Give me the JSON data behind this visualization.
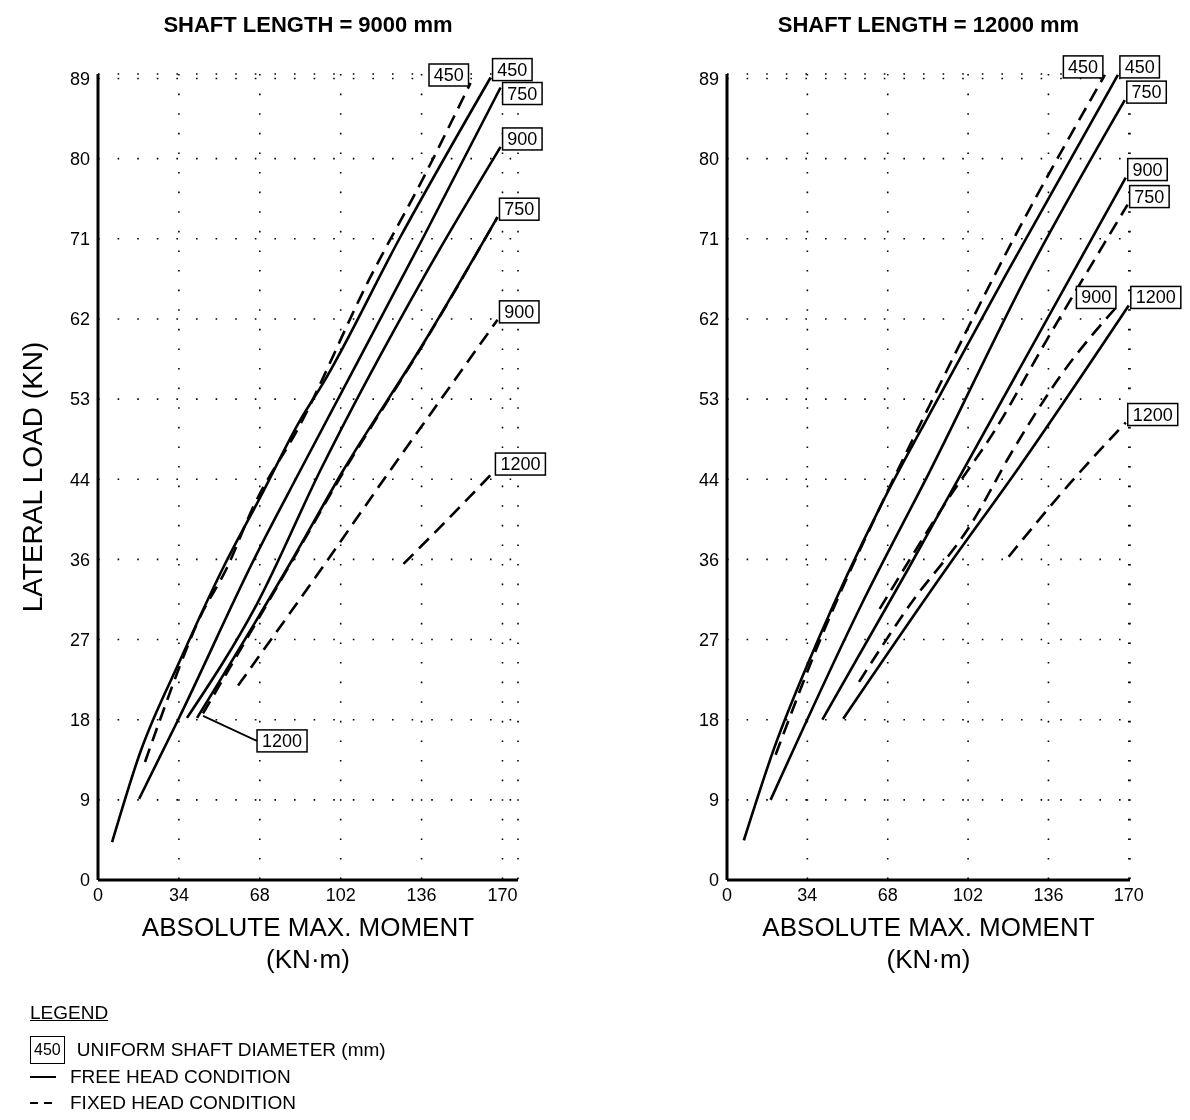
{
  "chart_data": [
    {
      "type": "line",
      "title": "SHAFT LENGTH =  9000 mm",
      "xlabel": "ABSOLUTE  MAX.  MOMENT\n(KN·m)",
      "ylabel": "LATERAL  LOAD  (KN)",
      "legend_title": "LEGEND",
      "xlim": [
        0,
        176
      ],
      "xticks": [
        0,
        {
          "value": 33.9,
          "label": "34"
        },
        {
          "value": 67.8,
          "label": "68"
        },
        {
          "value": 101.7,
          "label": "102"
        },
        {
          "value": 135.6,
          "label": "136"
        },
        {
          "value": 169.5,
          "label": "170"
        }
      ],
      "ylim": [
        0,
        89.5
      ],
      "yticks": [
        0,
        {
          "value": 8.9,
          "label": "9"
        },
        {
          "value": 17.8,
          "label": "18"
        },
        {
          "value": 26.7,
          "label": "27"
        },
        {
          "value": 35.6,
          "label": "36"
        },
        {
          "value": 44.5,
          "label": "44"
        },
        {
          "value": 53.4,
          "label": "53"
        },
        {
          "value": 62.3,
          "label": "62"
        },
        {
          "value": 71.2,
          "label": "71"
        },
        {
          "value": 80.1,
          "label": "80"
        },
        {
          "value": 89,
          "label": "89"
        }
      ],
      "grid": true,
      "series": [
        {
          "color": "#000000",
          "line_style": "solid",
          "x": [
            5.9,
            17.6,
            34.4,
            52.5,
            68.0,
            84.8,
            94.4,
            126.7,
            164.5
          ],
          "values": [
            4.2,
            14.1,
            24.4,
            34.7,
            42.5,
            51.1,
            55.2,
            71.4,
            89.1
          ]
        },
        {
          "color": "#000000",
          "line_style": "solid",
          "x": [
            17.2,
            33.6,
            66.7,
            84.8,
            136.4,
            168.7
          ],
          "values": [
            9.0,
            17.8,
            36.3,
            45.5,
            71.4,
            88.0
          ]
        },
        {
          "color": "#000000",
          "line_style": "solid",
          "x": [
            37.3,
            66.7,
            93.2,
            136.4,
            168.7
          ],
          "values": [
            18.0,
            30.7,
            45.5,
            66.9,
            81.4
          ]
        },
        {
          "color": "#000000",
          "line_style": "solid",
          "x": [
            41.5,
            80.6,
            102.8,
            136.4,
            167.4
          ],
          "values": [
            18.0,
            35.2,
            45.5,
            59.6,
            73.6
          ]
        },
        {
          "color": "#000000",
          "line_style": "dashed",
          "x": [
            19.7,
            26.0,
            42.8,
            54.1,
            65.0,
            84.8,
            112.9,
            136.4,
            156.1
          ],
          "values": [
            13.1,
            17.8,
            29.2,
            34.7,
            41.4,
            50.6,
            66.3,
            78.0,
            88.5
          ]
        },
        {
          "color": "#000000",
          "line_style": "dashed",
          "x": [
            44.0,
            81.5,
            103.5,
            137.0,
            167.4
          ],
          "values": [
            18.5,
            35.5,
            45.6,
            59.8,
            73.6
          ]
        },
        {
          "color": "#000000",
          "line_style": "dashed",
          "x": [
            58.7,
            93.2,
            122.5,
            143.5,
            167.4
          ],
          "values": [
            21.6,
            34.4,
            45.5,
            53.3,
            62.2
          ]
        },
        {
          "color": "#000000",
          "line_style": "dashed",
          "x": [
            128.0,
            146.4,
            165.7
          ],
          "values": [
            35.1,
            40.0,
            45.3
          ]
        }
      ],
      "annotations": [
        {
          "text": "450",
          "x": 156.1,
          "y": 88.5
        },
        {
          "text": "450",
          "x": 164.5,
          "y": 89.1
        },
        {
          "text": "750",
          "x": 168.7,
          "y": 88.0
        },
        {
          "text": "900",
          "x": 168.7,
          "y": 81.4
        },
        {
          "text": "750",
          "x": 167.4,
          "y": 73.6
        },
        {
          "text": "900",
          "x": 167.4,
          "y": 62.2
        },
        {
          "text": "1200",
          "x": 165.7,
          "y": 45.3
        },
        {
          "text": "1200",
          "x": 41.5,
          "y": 18.0
        },
        "450",
        "UNIFORM SHAFT DIAMETER (mm)",
        "FREE HEAD CONDITION",
        "FIXED HEAD CONDITION"
      ]
    },
    {
      "type": "line",
      "title": "SHAFT LENGTH =  12000 mm",
      "xlabel": "ABSOLUTE  MAX.  MOMENT\n(KN·m)",
      "xlim": [
        0,
        170
      ],
      "xticks": [
        0,
        {
          "value": 33.9,
          "label": "34"
        },
        {
          "value": 67.8,
          "label": "68"
        },
        {
          "value": 101.7,
          "label": "102"
        },
        {
          "value": 135.6,
          "label": "136"
        },
        {
          "value": 169.5,
          "label": "170"
        }
      ],
      "ylim": [
        0,
        89.5
      ],
      "yticks": [
        0,
        {
          "value": 8.9,
          "label": "9"
        },
        {
          "value": 17.8,
          "label": "18"
        },
        {
          "value": 26.7,
          "label": "27"
        },
        {
          "value": 35.6,
          "label": "36"
        },
        {
          "value": 44.5,
          "label": "44"
        },
        {
          "value": 53.4,
          "label": "53"
        },
        {
          "value": 62.3,
          "label": "62"
        },
        {
          "value": 71.2,
          "label": "71"
        },
        {
          "value": 80.1,
          "label": "80"
        },
        {
          "value": 89,
          "label": "89"
        }
      ],
      "grid": true,
      "series": [
        {
          "color": "#000000",
          "line_style": "solid",
          "x": [
            7.1,
            19.7,
            39.3,
            65.7,
            86.6,
            117.6,
            164.9
          ],
          "values": [
            4.4,
            14.5,
            27.2,
            42.0,
            52.3,
            67.2,
            89.4
          ]
        },
        {
          "color": "#000000",
          "line_style": "solid",
          "x": [
            18.4,
            57.3,
            85.4,
            127.2,
            167.8
          ],
          "values": [
            8.9,
            30.9,
            45.3,
            67.5,
            86.6
          ]
        },
        {
          "color": "#000000",
          "line_style": "solid",
          "x": [
            40.2,
            75.7,
            99.2,
            168.2
          ],
          "values": [
            17.8,
            34.2,
            45.3,
            78.0
          ]
        },
        {
          "color": "#000000",
          "line_style": "solid",
          "x": [
            49.0,
            93.7,
            121.8,
            169.5
          ],
          "values": [
            17.9,
            35.0,
            45.3,
            63.8
          ]
        },
        {
          "color": "#000000",
          "line_style": "dashed",
          "x": [
            20.5,
            39.8,
            66.0,
            86.0,
            120.1,
            159.4
          ],
          "values": [
            13.9,
            27.0,
            42.2,
            53.0,
            70.8,
            89.4
          ]
        },
        {
          "color": "#000000",
          "line_style": "dashed",
          "x": [
            64.4,
            92.5,
            113.4,
            134.3,
            159.4,
            169.0
          ],
          "values": [
            30.1,
            42.0,
            50.1,
            59.7,
            70.8,
            75.0
          ]
        },
        {
          "color": "#000000",
          "line_style": "dashed",
          "x": [
            55.7,
            77.0,
            103.4,
            120.1,
            141.0,
            164.9
          ],
          "values": [
            22.0,
            30.5,
            39.7,
            47.5,
            56.1,
            63.8
          ]
        },
        {
          "color": "#000000",
          "line_style": "dashed",
          "x": [
            118.8,
            145.2,
            168.2
          ],
          "values": [
            35.9,
            44.2,
            50.8
          ]
        }
      ],
      "annotations": [
        {
          "text": "450",
          "x": 159.4,
          "y": 89.4
        },
        {
          "text": "450",
          "x": 164.9,
          "y": 89.4
        },
        {
          "text": "750",
          "x": 167.8,
          "y": 86.6
        },
        {
          "text": "900",
          "x": 168.2,
          "y": 78.0
        },
        {
          "text": "750",
          "x": 169.0,
          "y": 75.0
        },
        {
          "text": "900",
          "x": 164.9,
          "y": 63.8
        },
        {
          "text": "1200",
          "x": 169.5,
          "y": 63.8
        },
        {
          "text": "1200",
          "x": 168.2,
          "y": 50.8
        }
      ]
    }
  ]
}
